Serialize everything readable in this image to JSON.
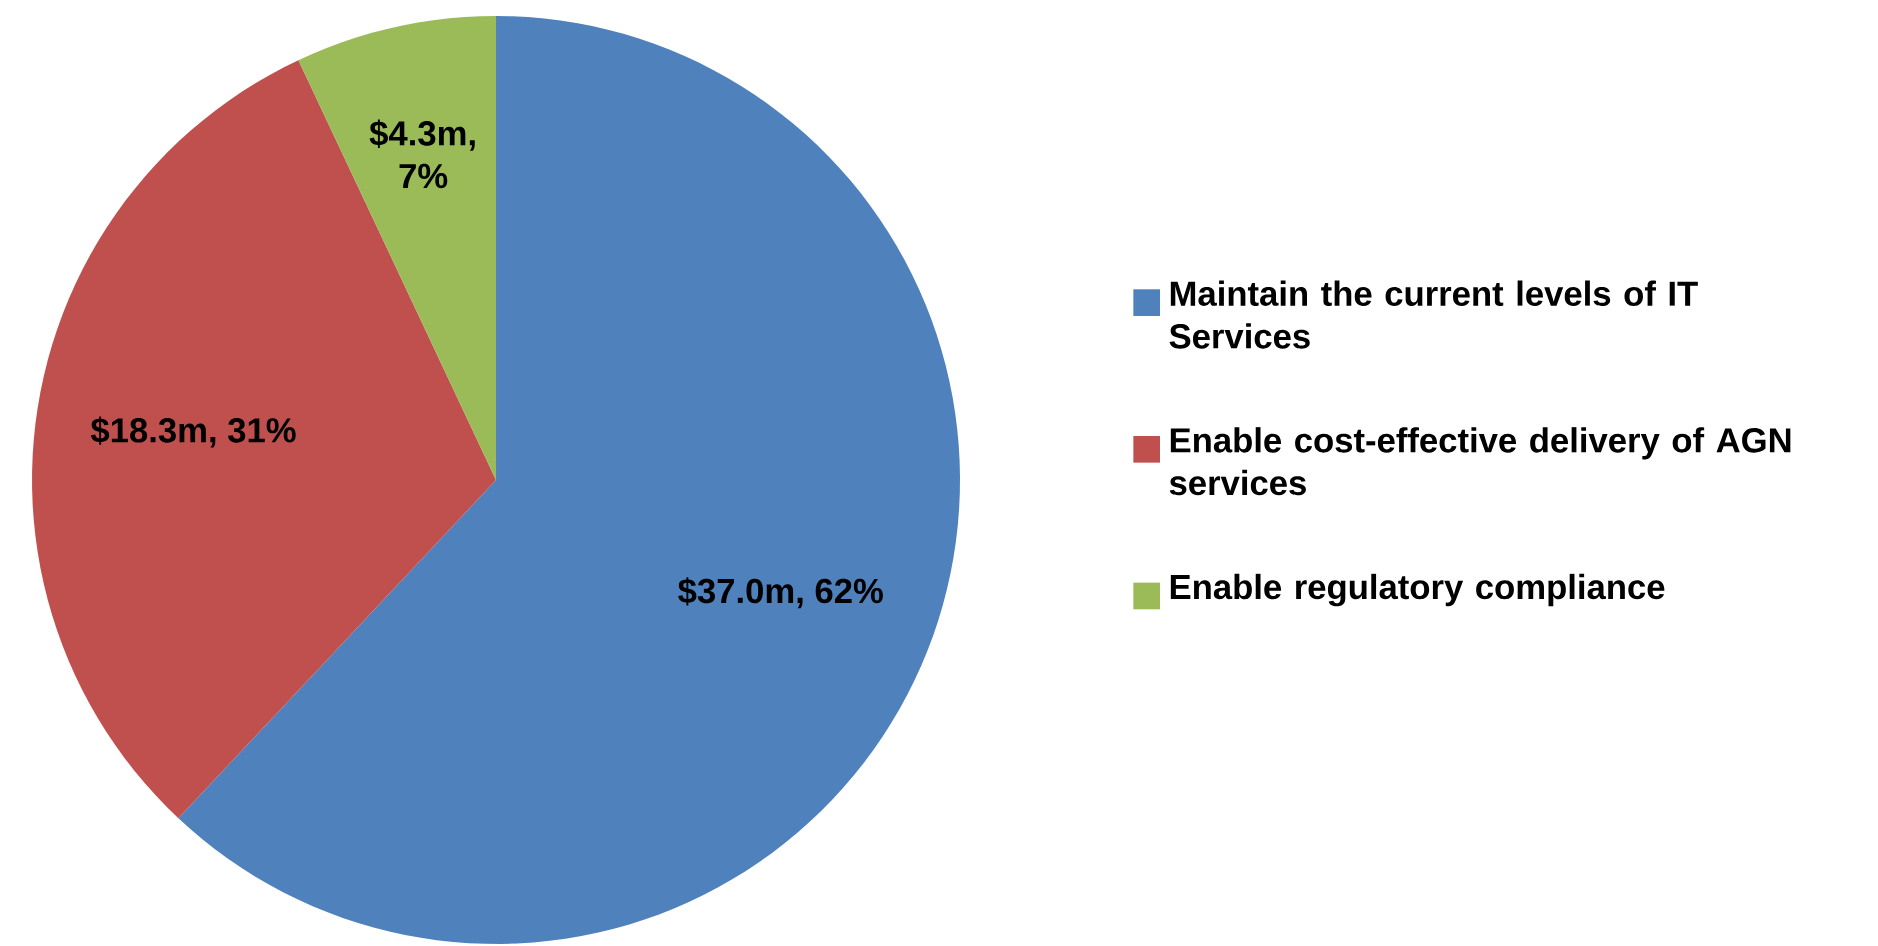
{
  "chart_data": {
    "type": "pie",
    "categories": [
      "Maintain the current levels of IT Services",
      "Enable cost-effective delivery of AGN services",
      "Enable regulatory compliance"
    ],
    "values": [
      62,
      31,
      7
    ],
    "value_labels": [
      "$37.0m, 62%",
      "$18.3m, 31%",
      "$4.3m, 7%"
    ],
    "colors": [
      "#4f81bd",
      "#c0504d",
      "#9bbb59"
    ],
    "legend": "right"
  }
}
